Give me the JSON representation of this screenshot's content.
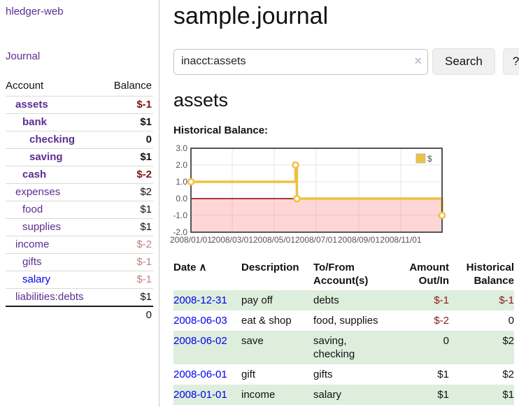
{
  "app": {
    "brand": "hledger-web"
  },
  "sidebar": {
    "nav_journal": "Journal",
    "accounts_header": {
      "account": "Account",
      "balance": "Balance"
    },
    "accounts": [
      {
        "name": "assets",
        "level": 1,
        "bold": true,
        "balance": "$-1",
        "negative": true,
        "dim": false,
        "link_color": "purple"
      },
      {
        "name": "bank",
        "level": 2,
        "bold": true,
        "balance": "$1",
        "negative": false,
        "dim": false,
        "link_color": "purple"
      },
      {
        "name": "checking",
        "level": 3,
        "bold": true,
        "balance": "0",
        "negative": false,
        "dim": false,
        "link_color": "purple"
      },
      {
        "name": "saving",
        "level": 3,
        "bold": true,
        "balance": "$1",
        "negative": false,
        "dim": false,
        "link_color": "purple"
      },
      {
        "name": "cash",
        "level": 2,
        "bold": true,
        "balance": "$-2",
        "negative": true,
        "dim": false,
        "link_color": "purple"
      },
      {
        "name": "expenses",
        "level": 1,
        "bold": false,
        "balance": "$2",
        "negative": false,
        "dim": false,
        "link_color": "purple"
      },
      {
        "name": "food",
        "level": 2,
        "bold": false,
        "balance": "$1",
        "negative": false,
        "dim": false,
        "link_color": "purple"
      },
      {
        "name": "supplies",
        "level": 2,
        "bold": false,
        "balance": "$1",
        "negative": false,
        "dim": false,
        "link_color": "purple"
      },
      {
        "name": "income",
        "level": 1,
        "bold": false,
        "balance": "$-2",
        "negative": true,
        "dim": true,
        "link_color": "purple"
      },
      {
        "name": "gifts",
        "level": 2,
        "bold": false,
        "balance": "$-1",
        "negative": true,
        "dim": true,
        "link_color": "purple"
      },
      {
        "name": "salary",
        "level": 2,
        "bold": false,
        "balance": "$-1",
        "negative": true,
        "dim": true,
        "link_color": "blue"
      },
      {
        "name": "liabilities:debts",
        "level": 1,
        "bold": false,
        "balance": "$1",
        "negative": false,
        "dim": false,
        "link_color": "purple"
      }
    ],
    "total": "0"
  },
  "header": {
    "title": "sample.journal"
  },
  "search": {
    "value": "inacct:assets",
    "clear_icon": "×",
    "button_label": "Search",
    "help_label": "?"
  },
  "account_page": {
    "title": "assets",
    "chart_label": "Historical Balance:"
  },
  "chart_data": {
    "type": "line",
    "step": true,
    "title": "Historical Balance:",
    "legend": {
      "label": "$",
      "position": "top-right"
    },
    "series": [
      {
        "name": "$",
        "color": "#EDC240",
        "points": [
          {
            "date": "2008-01-01",
            "day": 0,
            "value": 1
          },
          {
            "date": "2008-06-01",
            "day": 152,
            "value": 2
          },
          {
            "date": "2008-06-03",
            "day": 154,
            "value": 0
          },
          {
            "date": "2008-12-31",
            "day": 365,
            "value": -1
          }
        ]
      }
    ],
    "xlim_days": [
      0,
      365
    ],
    "ylim": [
      -2,
      3
    ],
    "yticks": [
      {
        "label": "3.0",
        "value": 3
      },
      {
        "label": "2.0",
        "value": 2
      },
      {
        "label": "1.0",
        "value": 1
      },
      {
        "label": "0.0",
        "value": 0
      },
      {
        "label": "-1.0",
        "value": -1
      },
      {
        "label": "-2.0",
        "value": -2
      }
    ],
    "xticks": [
      {
        "label": "2008/01/01",
        "day": 0
      },
      {
        "label": "2008/03/01",
        "day": 60
      },
      {
        "label": "2008/05/01",
        "day": 121
      },
      {
        "label": "2008/07/01",
        "day": 182
      },
      {
        "label": "2008/09/01",
        "day": 244
      },
      {
        "label": "2008/11/01",
        "day": 305
      }
    ],
    "grid": true,
    "negative_region_fill": "rgba(255,120,120,0.30)",
    "zero_line_color": "#8b0000",
    "border_color": "#545454",
    "gridline_color": "#e4e4e4"
  },
  "register_table": {
    "sort_icon": "∧",
    "columns": [
      {
        "lines": [
          "Date"
        ],
        "align": "left",
        "sorted": true
      },
      {
        "lines": [
          "Description"
        ],
        "align": "left",
        "sorted": false
      },
      {
        "lines": [
          "To/From",
          "Account(s)"
        ],
        "align": "left",
        "sorted": false
      },
      {
        "lines": [
          "Amount",
          "Out/In"
        ],
        "align": "right",
        "sorted": false
      },
      {
        "lines": [
          "Historical",
          "Balance"
        ],
        "align": "right",
        "sorted": false
      }
    ],
    "rows": [
      {
        "date": "2008-12-31",
        "description": "pay off",
        "accounts": "debts",
        "amount": "$-1",
        "amount_negative": true,
        "balance": "$-1",
        "balance_negative": true
      },
      {
        "date": "2008-06-03",
        "description": "eat & shop",
        "accounts": "food, supplies",
        "amount": "$-2",
        "amount_negative": true,
        "balance": "0",
        "balance_negative": false
      },
      {
        "date": "2008-06-02",
        "description": "save",
        "accounts": "saving, checking",
        "amount": "0",
        "amount_negative": false,
        "balance": "$2",
        "balance_negative": false
      },
      {
        "date": "2008-06-01",
        "description": "gift",
        "accounts": "gifts",
        "amount": "$1",
        "amount_negative": false,
        "balance": "$2",
        "balance_negative": false
      },
      {
        "date": "2008-01-01",
        "description": "income",
        "accounts": "salary",
        "amount": "$1",
        "amount_negative": false,
        "balance": "$1",
        "balance_negative": false
      }
    ]
  }
}
